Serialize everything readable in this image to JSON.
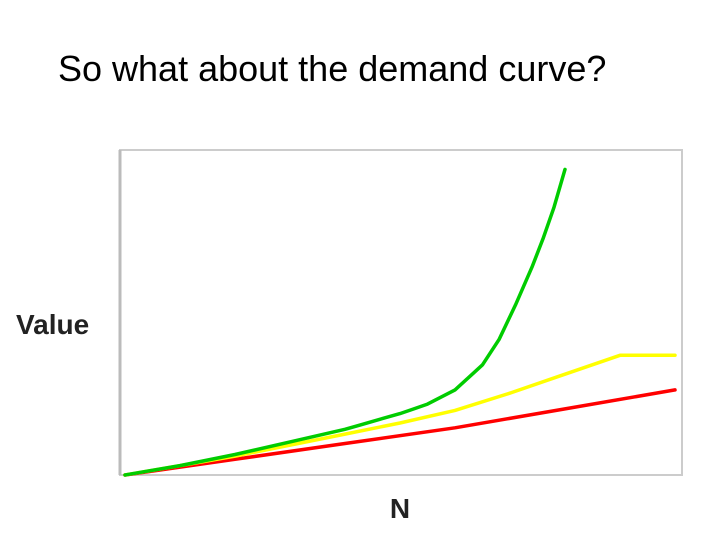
{
  "slide": {
    "title": "So what about the demand curve?"
  },
  "chart_data": {
    "type": "line",
    "title": "",
    "xlabel": "N",
    "ylabel": "Value",
    "xlim": [
      0,
      100
    ],
    "ylim": [
      0,
      100
    ],
    "grid": false,
    "legend": "none",
    "series": [
      {
        "color": "#ff0000",
        "x": [
          0,
          20,
          40,
          60,
          80,
          100
        ],
        "y": [
          0,
          5,
          10,
          15,
          21,
          27
        ]
      },
      {
        "color": "#ffff00",
        "x": [
          0,
          10,
          20,
          30,
          40,
          50,
          60,
          70,
          80,
          90,
          100
        ],
        "y": [
          0,
          3,
          6,
          9.5,
          13,
          16.5,
          20.5,
          26,
          32,
          38,
          38
        ]
      },
      {
        "color": "#00cc00",
        "x": [
          0,
          10,
          20,
          30,
          40,
          45,
          50,
          55,
          60,
          65,
          68,
          71,
          74,
          76,
          78,
          80
        ],
        "y": [
          0,
          3,
          6.5,
          10.5,
          14.5,
          17,
          19.5,
          22.5,
          27,
          35,
          43,
          54,
          66,
          75,
          85,
          97
        ]
      }
    ]
  }
}
